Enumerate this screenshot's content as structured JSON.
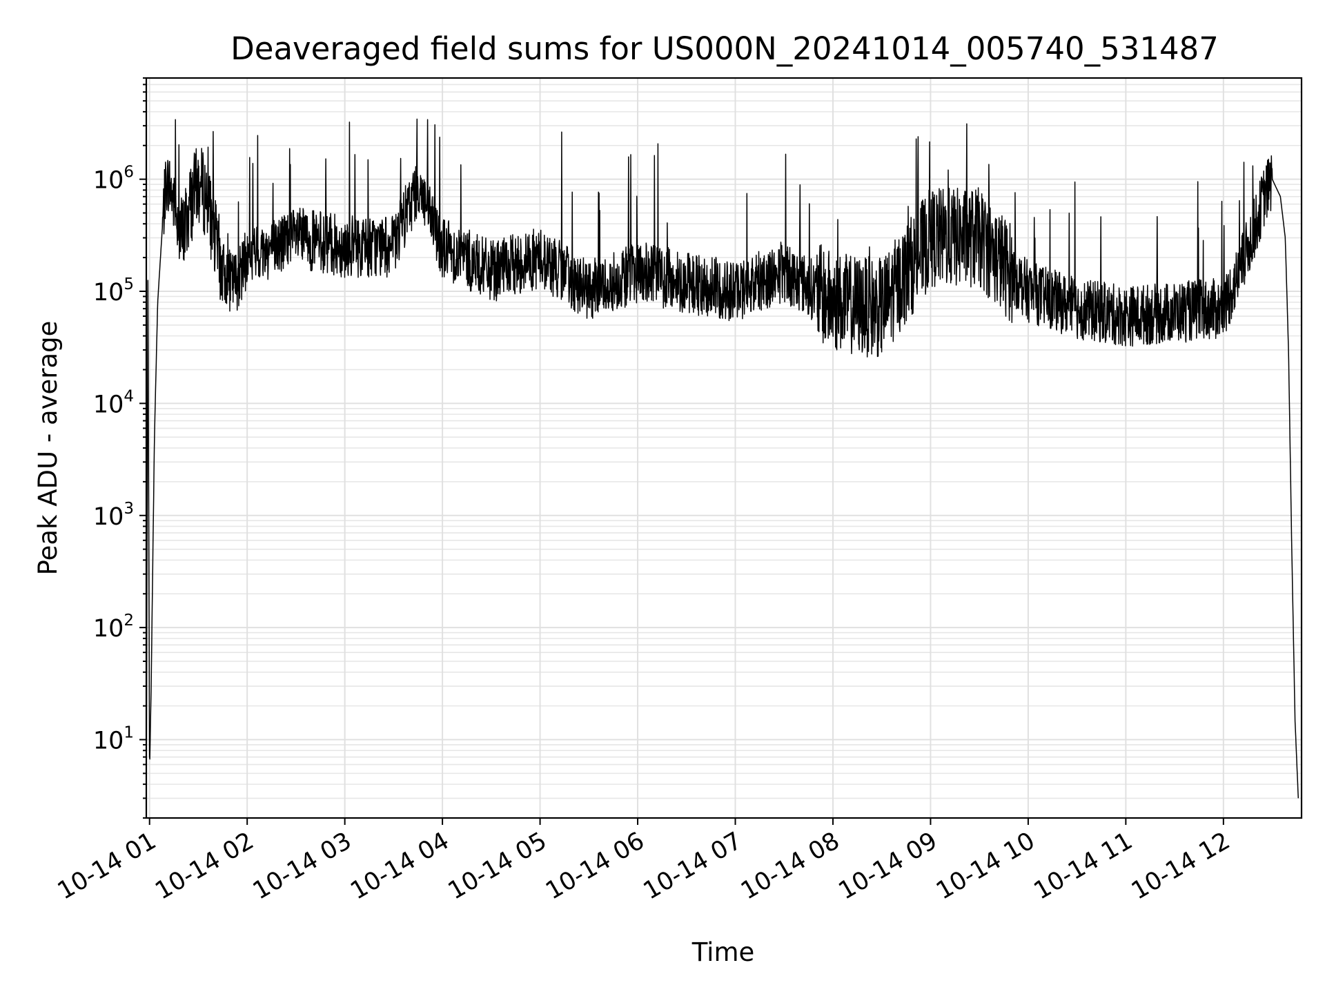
{
  "chart_data": {
    "type": "line",
    "title": "Deaveraged field sums for US000N_20241014_005740_531487",
    "xlabel": "Time",
    "ylabel": "Peak ADU - average",
    "yscale": "log",
    "ylim": [
      2,
      8000000
    ],
    "xlim": [
      "2024-10-14T00:58:00",
      "2024-10-14T12:48:00"
    ],
    "x_ticks": [
      "2024-10-14T01:00:00",
      "2024-10-14T02:00:00",
      "2024-10-14T03:00:00",
      "2024-10-14T04:00:00",
      "2024-10-14T05:00:00",
      "2024-10-14T06:00:00",
      "2024-10-14T07:00:00",
      "2024-10-14T08:00:00",
      "2024-10-14T09:00:00",
      "2024-10-14T10:00:00",
      "2024-10-14T11:00:00",
      "2024-10-14T12:00:00"
    ],
    "x_tick_labels": [
      "10-14 01",
      "10-14 02",
      "10-14 03",
      "10-14 04",
      "10-14 05",
      "10-14 06",
      "10-14 07",
      "10-14 08",
      "10-14 09",
      "10-14 10",
      "10-14 11",
      "10-14 12"
    ],
    "y_tick_values": [
      10,
      100,
      1000,
      10000,
      100000,
      1000000
    ],
    "y_tick_base": "10",
    "y_tick_exponents": [
      "1",
      "2",
      "3",
      "4",
      "5",
      "6"
    ],
    "grid": true,
    "legend": "none",
    "series": [
      {
        "color": "#000000",
        "x": [
          "2024-10-14T00:58:00",
          "2024-10-14T00:59:00",
          "2024-10-14T01:00:00",
          "2024-10-14T01:01:00",
          "2024-10-14T01:02:00",
          "2024-10-14T01:03:00",
          "2024-10-14T01:05:00",
          "2024-10-14T01:08:00",
          "2024-10-14T01:10:00",
          "2024-10-14T01:12:00",
          "2024-10-14T01:15:00",
          "2024-10-14T01:18:00",
          "2024-10-14T01:20:00",
          "2024-10-14T01:25:00",
          "2024-10-14T01:30:00",
          "2024-10-14T01:35:00",
          "2024-10-14T01:40:00",
          "2024-10-14T01:45:00",
          "2024-10-14T01:50:00",
          "2024-10-14T01:55:00",
          "2024-10-14T02:00:00",
          "2024-10-14T02:30:00",
          "2024-10-14T03:00:00",
          "2024-10-14T03:30:00",
          "2024-10-14T03:45:00",
          "2024-10-14T04:00:00",
          "2024-10-14T04:30:00",
          "2024-10-14T05:00:00",
          "2024-10-14T05:30:00",
          "2024-10-14T06:00:00",
          "2024-10-14T06:30:00",
          "2024-10-14T07:00:00",
          "2024-10-14T07:30:00",
          "2024-10-14T08:00:00",
          "2024-10-14T08:30:00",
          "2024-10-14T09:00:00",
          "2024-10-14T09:30:00",
          "2024-10-14T10:00:00",
          "2024-10-14T10:30:00",
          "2024-10-14T11:00:00",
          "2024-10-14T11:30:00",
          "2024-10-14T12:00:00",
          "2024-10-14T12:10:00",
          "2024-10-14T12:20:00",
          "2024-10-14T12:25:00",
          "2024-10-14T12:30:00",
          "2024-10-14T12:35:00",
          "2024-10-14T12:38:00",
          "2024-10-14T12:40:00",
          "2024-10-14T12:42:00",
          "2024-10-14T12:44:00",
          "2024-10-14T12:46:00"
        ],
        "y": [
          3,
          150000,
          5,
          30,
          400,
          5000,
          80000,
          400000,
          900000,
          950000,
          600000,
          400000,
          300000,
          600000,
          900000,
          700000,
          300000,
          150000,
          120000,
          130000,
          200000,
          300000,
          250000,
          250000,
          900000,
          250000,
          150000,
          200000,
          100000,
          150000,
          120000,
          100000,
          150000,
          80000,
          70000,
          300000,
          300000,
          100000,
          70000,
          60000,
          65000,
          70000,
          150000,
          400000,
          700000,
          1000000,
          700000,
          300000,
          30000,
          500,
          15,
          3
        ]
      }
    ]
  }
}
